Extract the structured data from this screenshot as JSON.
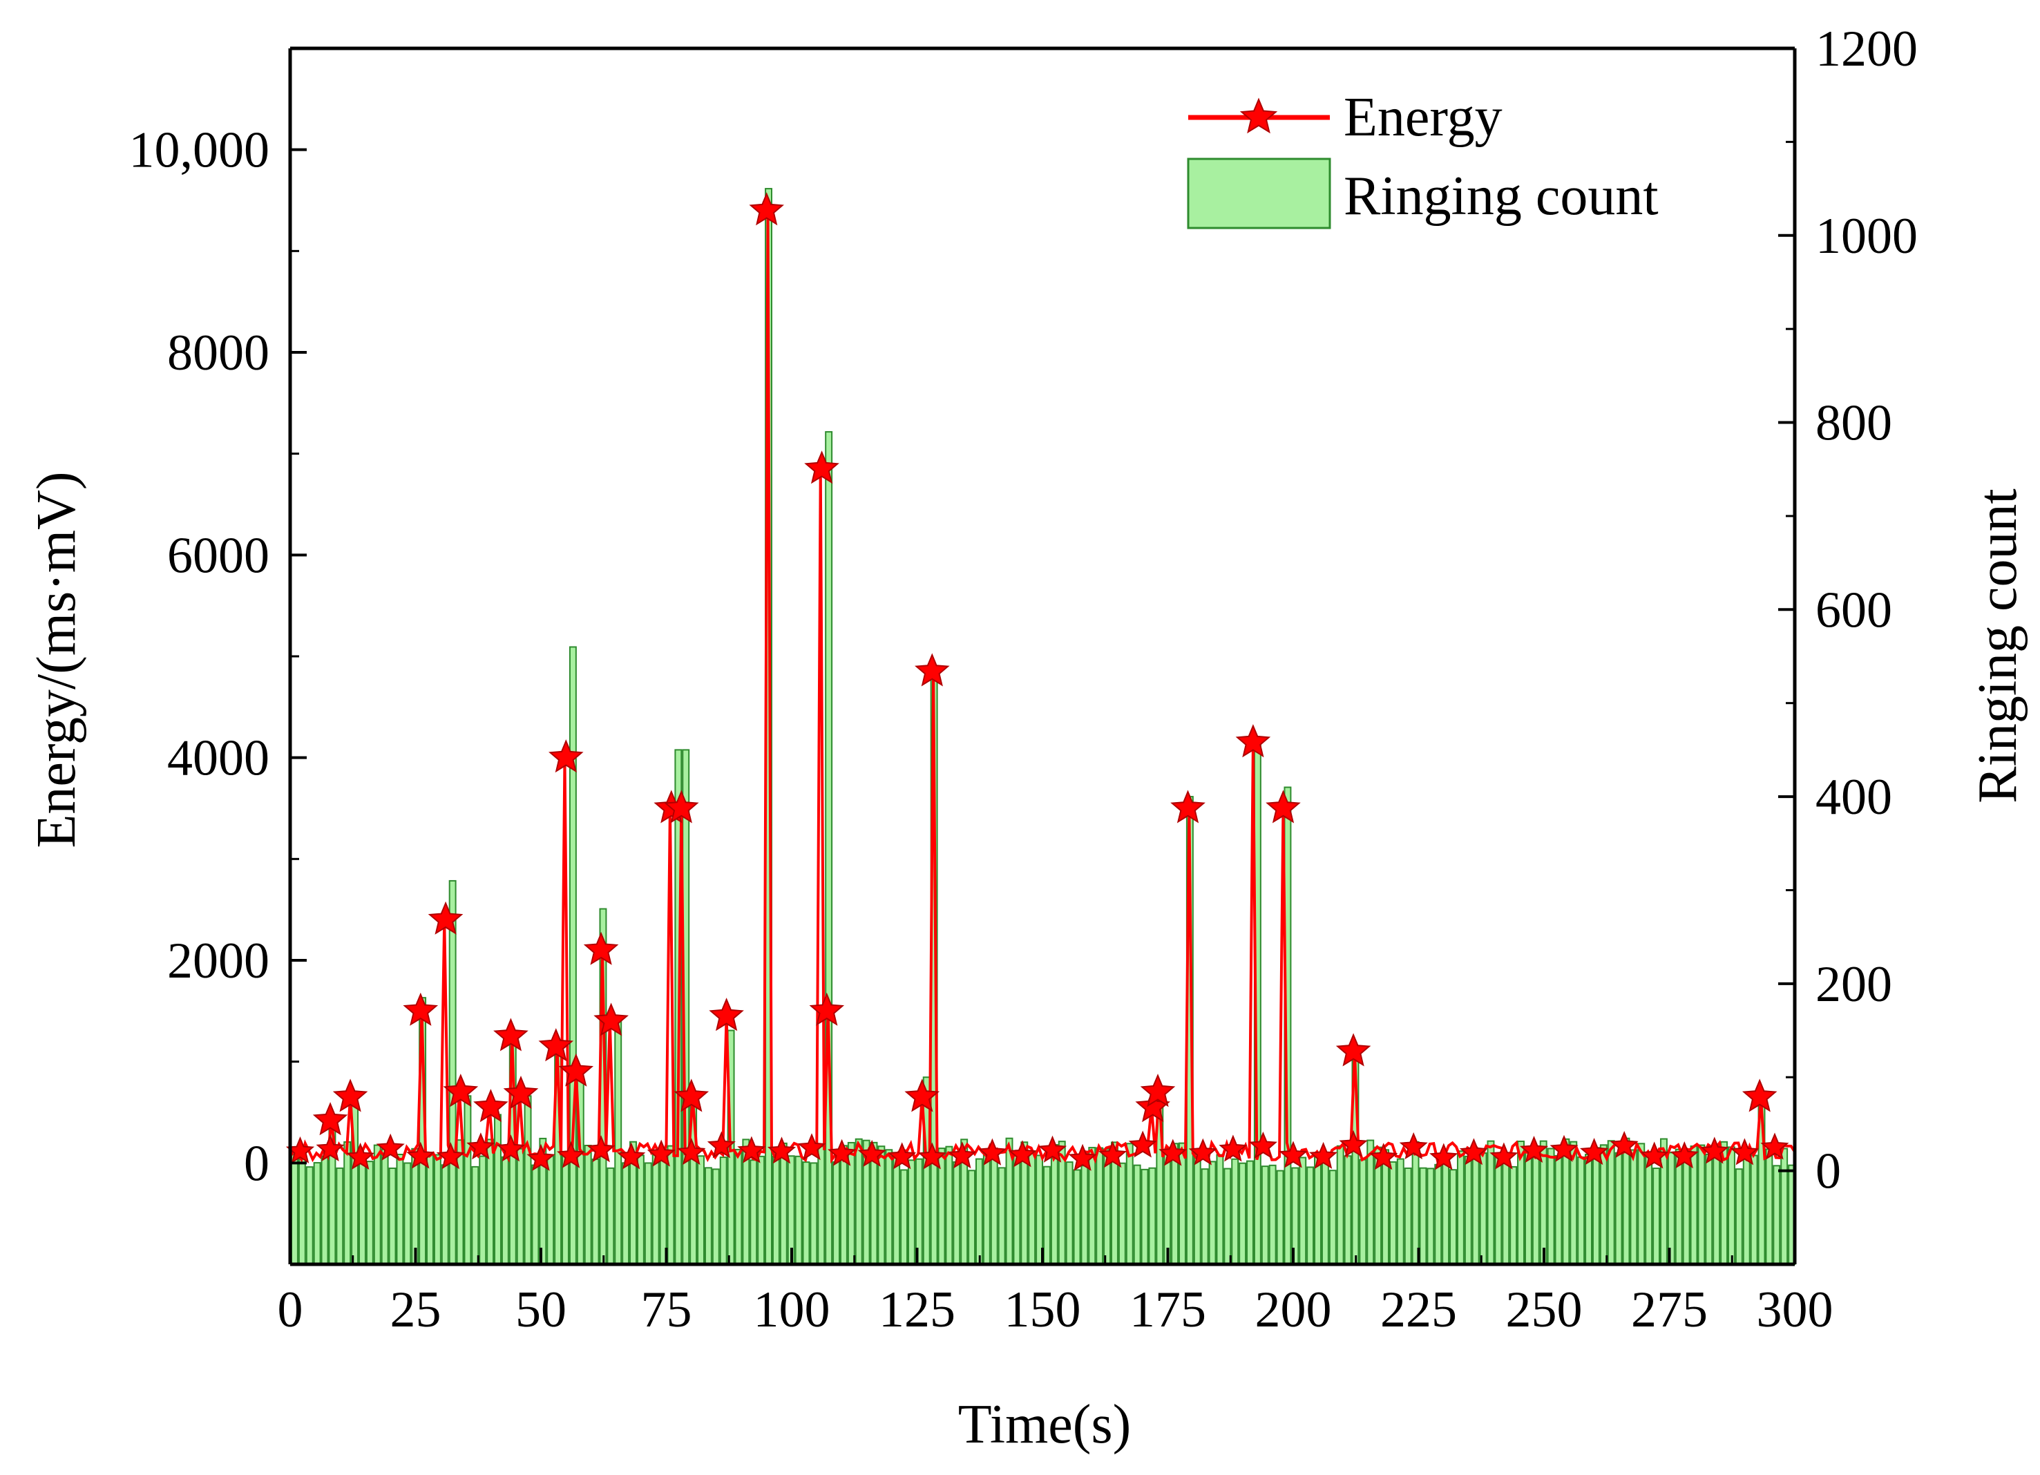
{
  "chart_data": {
    "type": "bar+line",
    "xlabel": "Time(s)",
    "ylabel_left": "Energy/(ms·mV)",
    "ylabel_right": "Ringing count",
    "xlim": [
      0,
      300
    ],
    "ylim_left": [
      -1000,
      11000
    ],
    "ylim_right": [
      -100,
      1200
    ],
    "x_ticks": [
      "0",
      "25",
      "50",
      "75",
      "100",
      "125",
      "150",
      "175",
      "200",
      "225",
      "250",
      "275",
      "300"
    ],
    "y_left_ticks": [
      "0",
      "2000",
      "4000",
      "6000",
      "8000",
      "10,000"
    ],
    "y_right_ticks": [
      "0",
      "200",
      "400",
      "600",
      "800",
      "1000",
      "1200"
    ],
    "grid": false,
    "legend_position": "top-right",
    "colors": {
      "energy": "#ff0000",
      "ringing_fill": "#a8f0a0",
      "ringing_edge": "#2e8b2e"
    },
    "series": [
      {
        "name": "Energy",
        "kind": "line-star",
        "peaks": [
          {
            "x": 8,
            "y": 420
          },
          {
            "x": 12,
            "y": 650
          },
          {
            "x": 26,
            "y": 1500
          },
          {
            "x": 31,
            "y": 2400
          },
          {
            "x": 34,
            "y": 700
          },
          {
            "x": 40,
            "y": 550
          },
          {
            "x": 44,
            "y": 1250
          },
          {
            "x": 46,
            "y": 680
          },
          {
            "x": 53,
            "y": 1150
          },
          {
            "x": 55,
            "y": 4000
          },
          {
            "x": 57,
            "y": 900
          },
          {
            "x": 62,
            "y": 2100
          },
          {
            "x": 64,
            "y": 1400
          },
          {
            "x": 76,
            "y": 3500
          },
          {
            "x": 78,
            "y": 3500
          },
          {
            "x": 80,
            "y": 650
          },
          {
            "x": 87,
            "y": 1450
          },
          {
            "x": 95,
            "y": 9400
          },
          {
            "x": 106,
            "y": 6850
          },
          {
            "x": 107,
            "y": 1500
          },
          {
            "x": 126,
            "y": 650
          },
          {
            "x": 128,
            "y": 4850
          },
          {
            "x": 172,
            "y": 550
          },
          {
            "x": 173,
            "y": 700
          },
          {
            "x": 179,
            "y": 3500
          },
          {
            "x": 192,
            "y": 4150
          },
          {
            "x": 198,
            "y": 3500
          },
          {
            "x": 212,
            "y": 1100
          },
          {
            "x": 293,
            "y": 650
          }
        ]
      },
      {
        "name": "Ringing count",
        "kind": "bar",
        "peaks": [
          {
            "x": 8,
            "y": 50
          },
          {
            "x": 12,
            "y": 70
          },
          {
            "x": 26,
            "y": 185
          },
          {
            "x": 31,
            "y": 310
          },
          {
            "x": 34,
            "y": 80
          },
          {
            "x": 40,
            "y": 60
          },
          {
            "x": 44,
            "y": 150
          },
          {
            "x": 46,
            "y": 80
          },
          {
            "x": 53,
            "y": 140
          },
          {
            "x": 55,
            "y": 560
          },
          {
            "x": 57,
            "y": 100
          },
          {
            "x": 62,
            "y": 280
          },
          {
            "x": 64,
            "y": 160
          },
          {
            "x": 76,
            "y": 450
          },
          {
            "x": 78,
            "y": 450
          },
          {
            "x": 80,
            "y": 80
          },
          {
            "x": 87,
            "y": 150
          },
          {
            "x": 95,
            "y": 1050
          },
          {
            "x": 106,
            "y": 790
          },
          {
            "x": 107,
            "y": 200
          },
          {
            "x": 126,
            "y": 100
          },
          {
            "x": 128,
            "y": 530
          },
          {
            "x": 172,
            "y": 60
          },
          {
            "x": 173,
            "y": 80
          },
          {
            "x": 179,
            "y": 400
          },
          {
            "x": 192,
            "y": 460
          },
          {
            "x": 198,
            "y": 410
          },
          {
            "x": 212,
            "y": 120
          },
          {
            "x": 293,
            "y": 70
          }
        ],
        "baseline_range": [
          0,
          35
        ]
      }
    ]
  }
}
